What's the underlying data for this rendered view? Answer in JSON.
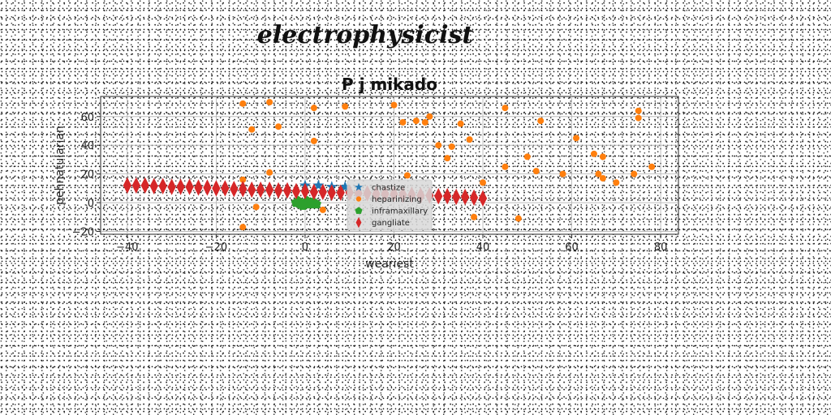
{
  "figure": {
    "title": "electrophysicist"
  },
  "chart_data": {
    "type": "scatter",
    "title": "P j mikado",
    "xlabel": "weariest",
    "ylabel": "pehnatularian",
    "xlim": [
      -46,
      84
    ],
    "ylim": [
      -22,
      74
    ],
    "xticks": [
      -40,
      -20,
      0,
      20,
      40,
      60,
      80
    ],
    "yticks": [
      -20,
      0,
      20,
      40,
      60
    ],
    "grid": true,
    "legend_position": "lower-center",
    "series": [
      {
        "name": "chastize",
        "color": "#1f77b4",
        "marker": "star",
        "x": [
          0,
          3,
          6,
          9
        ],
        "y": [
          12,
          12,
          11,
          11
        ]
      },
      {
        "name": "heparinizing",
        "color": "#ff7f0e",
        "marker": "circle",
        "x": [
          -14,
          -8,
          -12,
          -6,
          2,
          9,
          20,
          22,
          25,
          27,
          28,
          30,
          33,
          35,
          37,
          45,
          53,
          61,
          65,
          67,
          75,
          75,
          -8,
          2,
          23,
          32,
          45,
          50,
          52,
          58,
          66,
          67,
          70,
          74,
          78,
          -14,
          -11,
          4,
          38,
          40,
          48,
          -14
        ],
        "y": [
          69,
          70,
          51,
          53,
          66,
          67,
          68,
          56,
          57,
          56,
          60,
          40,
          39,
          55,
          44,
          66,
          57,
          45,
          34,
          32,
          64,
          59,
          21,
          43,
          19,
          31,
          25,
          32,
          22,
          20,
          20,
          17,
          14,
          20,
          25,
          16,
          -3,
          -5,
          -10,
          14,
          -11,
          -17
        ]
      },
      {
        "name": "inframaxillary",
        "color": "#2ca02c",
        "marker": "pentagon",
        "x": [
          -2,
          -1,
          0,
          1,
          2,
          -1.5,
          0.5,
          1.5,
          -0.5,
          2.5
        ],
        "y": [
          0,
          -1,
          0,
          -1,
          0,
          1,
          1,
          0,
          -2,
          -1
        ]
      },
      {
        "name": "gangliate",
        "color": "#d62728",
        "marker": "thin_diamond",
        "x": [
          -40,
          -38,
          -36,
          -34,
          -32,
          -30,
          -28,
          -26,
          -24,
          -22,
          -20,
          -18,
          -16,
          -14,
          -12,
          -10,
          -8,
          -6,
          -4,
          -2,
          0,
          2,
          4,
          6,
          8,
          10,
          12,
          14,
          16,
          18,
          20,
          22,
          24,
          26,
          28,
          30,
          32,
          34,
          36,
          38,
          40
        ],
        "y": [
          12,
          12,
          12,
          11.5,
          11.5,
          11,
          11,
          11,
          10.5,
          10.5,
          10,
          10,
          9.5,
          9.5,
          9,
          9,
          9,
          8.5,
          8.5,
          8,
          8,
          7.5,
          7.5,
          7,
          7,
          7,
          6.5,
          6.5,
          6,
          6,
          6,
          5.5,
          5.5,
          5,
          5,
          4.5,
          4.5,
          4,
          4,
          3.5,
          3
        ]
      }
    ]
  }
}
